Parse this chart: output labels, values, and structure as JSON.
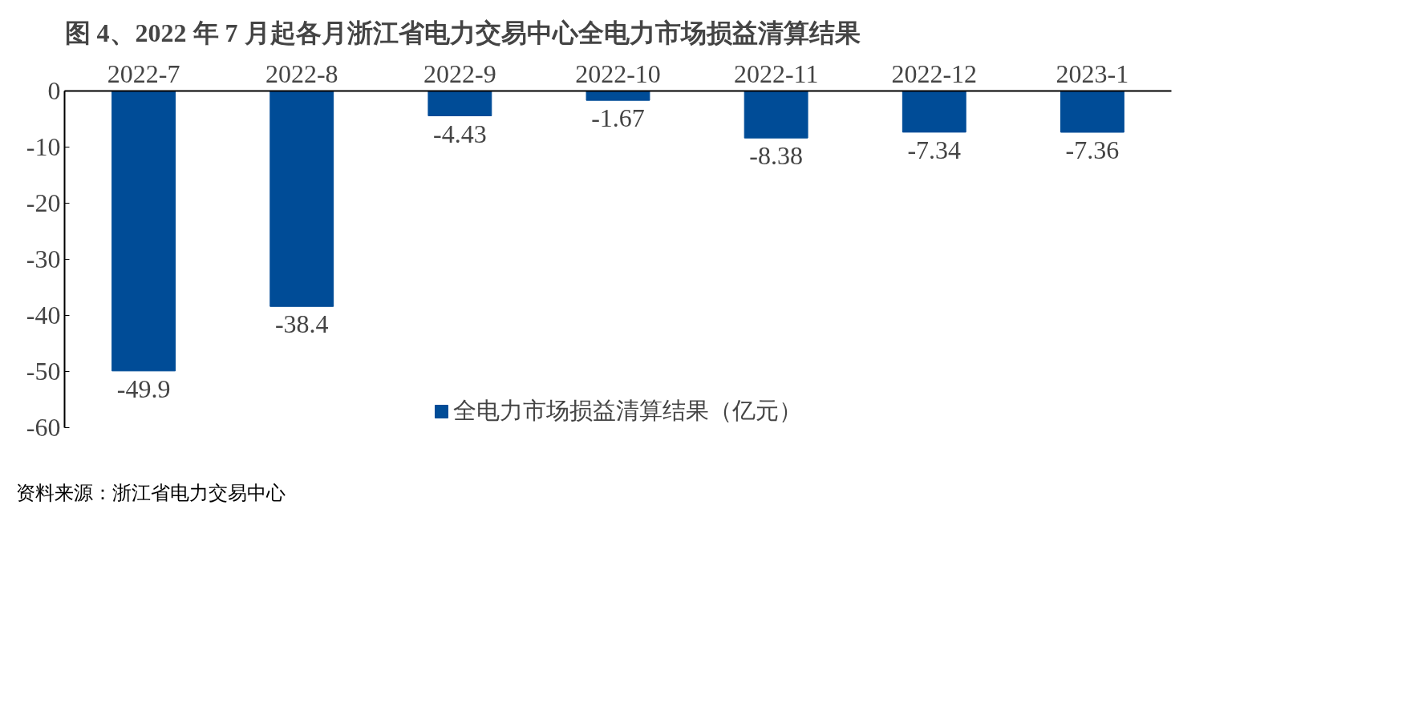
{
  "chart_data": {
    "type": "bar",
    "title": "图 4、2022 年 7 月起各月浙江省电力交易中心全电力市场损益清算结果",
    "categories": [
      "2022-7",
      "2022-8",
      "2022-9",
      "2022-10",
      "2022-11",
      "2022-12",
      "2023-1"
    ],
    "series": [
      {
        "name": "全电力市场损益清算结果（亿元）",
        "color": "#004c97",
        "values": [
          -49.9,
          -38.4,
          -4.43,
          -1.67,
          -8.38,
          -7.34,
          -7.36
        ]
      }
    ],
    "ylim": [
      -60,
      0
    ],
    "yticks": [
      -60,
      -50,
      -40,
      -30,
      -20,
      -10,
      0
    ],
    "data_labels": true,
    "grid": false,
    "legend": "bottom",
    "annotations": [
      "资料来源：浙江省电力交易中心"
    ]
  }
}
